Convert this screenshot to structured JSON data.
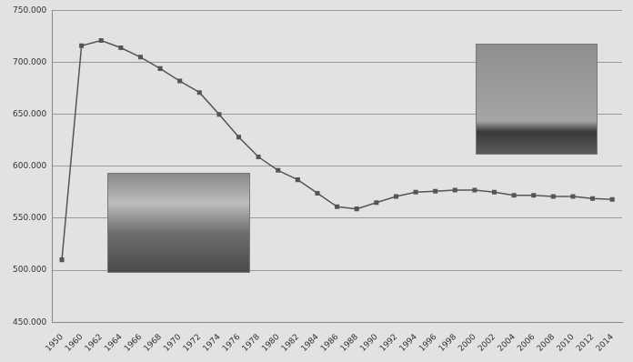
{
  "chart_data": {
    "type": "line",
    "categories": [
      "1950",
      "1960",
      "1962",
      "1964",
      "1966",
      "1968",
      "1970",
      "1972",
      "1974",
      "1976",
      "1978",
      "1980",
      "1982",
      "1984",
      "1986",
      "1988",
      "1990",
      "1992",
      "1994",
      "1996",
      "1998",
      "2000",
      "2002",
      "2004",
      "2006",
      "2008",
      "2010",
      "2012",
      "2014"
    ],
    "values": [
      510000,
      716000,
      721000,
      714000,
      705000,
      694000,
      682000,
      671000,
      650000,
      628000,
      609000,
      596000,
      587000,
      574000,
      561000,
      559000,
      565000,
      571000,
      575000,
      576000,
      577000,
      577000,
      575000,
      572000,
      572000,
      571000,
      571000,
      569000,
      568000
    ],
    "color": "#555555",
    "marker": "square",
    "ylim": [
      450000,
      750000
    ],
    "yticks": [
      {
        "value": 450000,
        "label": "450.000"
      },
      {
        "value": 500000,
        "label": "500.000"
      },
      {
        "value": 550000,
        "label": "550.000"
      },
      {
        "value": 600000,
        "label": "600.000"
      },
      {
        "value": 650000,
        "label": "650.000"
      },
      {
        "value": 700000,
        "label": "700.000"
      },
      {
        "value": 750000,
        "label": "750.000"
      }
    ],
    "grid": true
  }
}
